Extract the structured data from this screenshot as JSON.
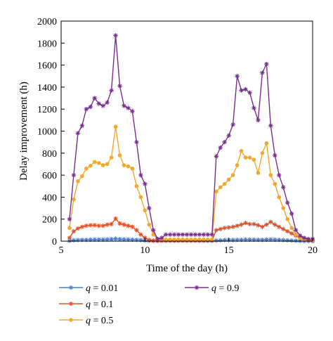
{
  "chart_data": {
    "type": "line",
    "xlabel": "Time of the day (h)",
    "ylabel": "Delay improvement (h)",
    "xlim": [
      5,
      20
    ],
    "ylim": [
      0,
      2000
    ],
    "xticks": [
      5,
      10,
      15,
      20
    ],
    "yticks": [
      0,
      200,
      400,
      600,
      800,
      1000,
      1200,
      1400,
      1600,
      1800,
      2000
    ],
    "grid": false,
    "legend_position": "bottom",
    "legend_var": "q",
    "series": [
      {
        "name": "q = 0.01",
        "value_label": "0.01",
        "color": "#4a7ec4",
        "marker": "asterisk",
        "x": [
          5.5,
          5.75,
          6,
          6.25,
          6.5,
          6.75,
          7,
          7.25,
          7.5,
          7.75,
          8,
          8.25,
          8.5,
          8.75,
          9,
          9.25,
          9.5,
          9.75,
          10,
          10.25,
          10.5,
          10.75,
          11,
          11.25,
          11.5,
          11.75,
          12,
          12.25,
          12.5,
          12.75,
          13,
          13.25,
          13.5,
          13.75,
          14,
          14.25,
          14.5,
          14.75,
          15,
          15.25,
          15.5,
          15.75,
          16,
          16.25,
          16.5,
          16.75,
          17,
          17.25,
          17.5,
          17.75,
          18,
          18.25,
          18.5,
          18.75,
          19,
          19.25,
          19.5,
          19.75,
          20
        ],
        "y": [
          3,
          8,
          10,
          12,
          12,
          14,
          15,
          14,
          15,
          16,
          18,
          22,
          18,
          16,
          15,
          14,
          12,
          10,
          6,
          4,
          3,
          2,
          3,
          3,
          3,
          3,
          3,
          3,
          3,
          3,
          3,
          3,
          3,
          3,
          3,
          6,
          8,
          10,
          10,
          11,
          12,
          13,
          15,
          14,
          14,
          13,
          12,
          14,
          16,
          14,
          12,
          10,
          8,
          6,
          4,
          2,
          1,
          1,
          1
        ]
      },
      {
        "name": "q = 0.1",
        "value_label": "0.1",
        "color": "#e0502a",
        "marker": "asterisk",
        "x": [
          5.5,
          5.75,
          6,
          6.25,
          6.5,
          6.75,
          7,
          7.25,
          7.5,
          7.75,
          8,
          8.25,
          8.5,
          8.75,
          9,
          9.25,
          9.5,
          9.75,
          10,
          10.25,
          10.5,
          10.75,
          11,
          11.25,
          11.5,
          11.75,
          12,
          12.25,
          12.5,
          12.75,
          13,
          13.25,
          13.5,
          13.75,
          14,
          14.25,
          14.5,
          14.75,
          15,
          15.25,
          15.5,
          15.75,
          16,
          16.25,
          16.5,
          16.75,
          17,
          17.25,
          17.5,
          17.75,
          18,
          18.25,
          18.5,
          18.75,
          19,
          19.25,
          19.5,
          19.75,
          20
        ],
        "y": [
          30,
          90,
          115,
          130,
          140,
          145,
          145,
          140,
          140,
          150,
          155,
          205,
          160,
          150,
          140,
          130,
          100,
          60,
          30,
          10,
          5,
          3,
          5,
          5,
          5,
          5,
          5,
          5,
          5,
          5,
          5,
          5,
          5,
          5,
          5,
          100,
          110,
          120,
          125,
          130,
          140,
          150,
          165,
          155,
          155,
          145,
          130,
          150,
          175,
          150,
          130,
          110,
          90,
          70,
          50,
          30,
          15,
          10,
          5
        ]
      },
      {
        "name": "q = 0.5",
        "value_label": "0.5",
        "color": "#f3a72b",
        "marker": "circle",
        "x": [
          5.5,
          5.75,
          6,
          6.25,
          6.5,
          6.75,
          7,
          7.25,
          7.5,
          7.75,
          8,
          8.25,
          8.5,
          8.75,
          9,
          9.25,
          9.5,
          9.75,
          10,
          10.25,
          10.5,
          10.75,
          11,
          11.25,
          11.5,
          11.75,
          12,
          12.25,
          12.5,
          12.75,
          13,
          13.25,
          13.5,
          13.75,
          14,
          14.25,
          14.5,
          14.75,
          15,
          15.25,
          15.5,
          15.75,
          16,
          16.25,
          16.5,
          16.75,
          17,
          17.25,
          17.5,
          17.75,
          18,
          18.25,
          18.5,
          18.75,
          19,
          19.25,
          19.5,
          19.75,
          20
        ],
        "y": [
          120,
          380,
          545,
          590,
          660,
          685,
          720,
          710,
          690,
          700,
          760,
          1040,
          780,
          690,
          680,
          660,
          500,
          400,
          280,
          150,
          60,
          20,
          15,
          15,
          15,
          15,
          15,
          15,
          15,
          15,
          15,
          15,
          15,
          15,
          15,
          450,
          490,
          520,
          560,
          600,
          690,
          820,
          760,
          760,
          740,
          620,
          800,
          890,
          600,
          520,
          400,
          300,
          200,
          120,
          60,
          30,
          20,
          15,
          10
        ]
      },
      {
        "name": "q = 0.9",
        "value_label": "0.9",
        "color": "#7a2d8f",
        "marker": "asterisk",
        "x": [
          5.5,
          5.75,
          6,
          6.25,
          6.5,
          6.75,
          7,
          7.25,
          7.5,
          7.75,
          8,
          8.25,
          8.5,
          8.75,
          9,
          9.25,
          9.5,
          9.75,
          10,
          10.25,
          10.5,
          10.75,
          11,
          11.25,
          11.5,
          11.75,
          12,
          12.25,
          12.5,
          12.75,
          13,
          13.25,
          13.5,
          13.75,
          14,
          14.25,
          14.5,
          14.75,
          15,
          15.25,
          15.5,
          15.75,
          16,
          16.25,
          16.5,
          16.75,
          17,
          17.25,
          17.5,
          17.75,
          18,
          18.25,
          18.5,
          18.75,
          19,
          19.25,
          19.5,
          19.75,
          20
        ],
        "y": [
          200,
          600,
          980,
          1050,
          1200,
          1220,
          1300,
          1250,
          1230,
          1260,
          1370,
          1870,
          1410,
          1230,
          1210,
          1180,
          900,
          600,
          520,
          300,
          100,
          20,
          30,
          60,
          60,
          60,
          60,
          60,
          60,
          60,
          60,
          60,
          60,
          60,
          60,
          770,
          850,
          900,
          960,
          1060,
          1500,
          1370,
          1380,
          1350,
          1210,
          1100,
          1530,
          1610,
          1050,
          780,
          600,
          490,
          350,
          250,
          100,
          50,
          30,
          20,
          20
        ]
      }
    ]
  }
}
